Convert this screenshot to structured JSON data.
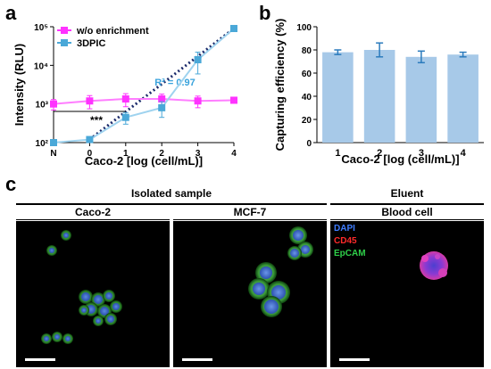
{
  "panels": {
    "a": "a",
    "b": "b",
    "c": "c"
  },
  "chart_data": [
    {
      "type": "line",
      "panel": "a",
      "xlabel": "Caco-2 [log (cell/mL)]",
      "ylabel": "Intensity (RLU)",
      "y_scale": "log",
      "ylim": [
        100,
        100000
      ],
      "x_ticks": [
        "N",
        "0",
        "1",
        "2",
        "3",
        "4"
      ],
      "y_ticks": [
        "10²",
        "10³",
        "10⁴",
        "10⁵"
      ],
      "legend_position": "top-left",
      "series": [
        {
          "name": "w/o enrichment",
          "color": "#ff33ff",
          "marker": "square",
          "x": [
            "N",
            "0",
            "1",
            "2",
            "3",
            "4"
          ],
          "y": [
            1000,
            1200,
            1350,
            1350,
            1200,
            1250
          ],
          "error": [
            300,
            450,
            500,
            450,
            400,
            150
          ]
        },
        {
          "name": "3DPIC",
          "color": "#4aa8d8",
          "marker": "square",
          "x": [
            "N",
            "0",
            "1",
            "2",
            "3",
            "4"
          ],
          "y": [
            100,
            120,
            450,
            800,
            14000,
            90000
          ],
          "error": [
            10,
            20,
            150,
            350,
            8000,
            15000
          ]
        }
      ],
      "fit_line": {
        "label": "R² = 0.97",
        "from": [
          "0",
          120
        ],
        "to": [
          "4",
          90000
        ]
      },
      "annotations": [
        {
          "text": "***",
          "between": [
            "N",
            "1"
          ]
        }
      ]
    },
    {
      "type": "bar",
      "panel": "b",
      "xlabel": "Caco-2 [log (cell/mL)]",
      "ylabel": "Capturing efficiency (%)",
      "ylim": [
        0,
        100
      ],
      "y_ticks": [
        "0",
        "20",
        "40",
        "60",
        "80",
        "100"
      ],
      "categories": [
        "1",
        "2",
        "3",
        "4"
      ],
      "values": [
        78,
        80,
        74,
        76
      ],
      "error": [
        2,
        6,
        5,
        2
      ],
      "bar_color": "#a7c9e8",
      "error_color": "#2b7bbd"
    }
  ],
  "panel_c": {
    "groups": {
      "isolated": "Isolated sample",
      "eluent": "Eluent"
    },
    "images": [
      {
        "title": "Caco-2"
      },
      {
        "title": "MCF-7"
      },
      {
        "title": "Blood cell"
      }
    ],
    "legend": [
      {
        "text": "DAPI",
        "color": "#3f7dff"
      },
      {
        "text": "CD45",
        "color": "#ff2a2a"
      },
      {
        "text": "EpCAM",
        "color": "#2fd04a"
      }
    ]
  }
}
